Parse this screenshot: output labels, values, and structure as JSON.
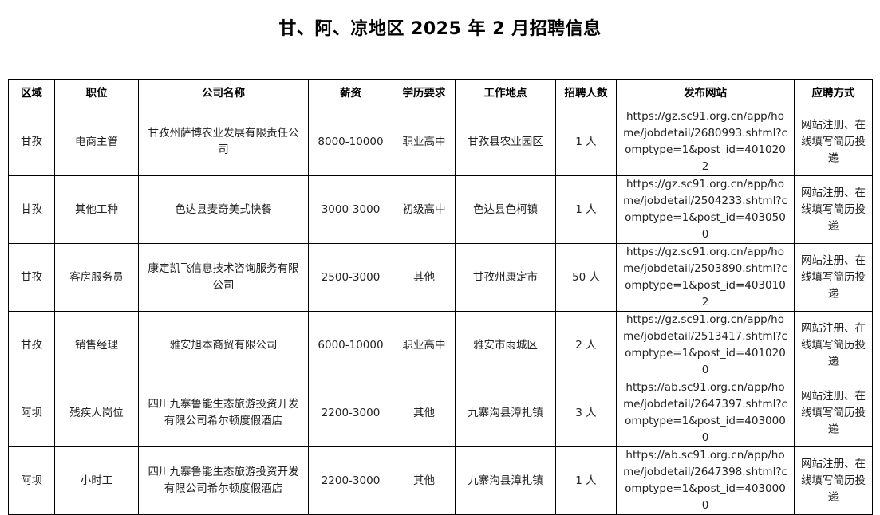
{
  "title": "甘、阿、凉地区 2025 年 2 月招聘信息",
  "columns": [
    "区域",
    "职位",
    "公司名称",
    "薪资",
    "学历要求",
    "工作地点",
    "招聘人数",
    "发布网站",
    "应聘方式"
  ],
  "rows": [
    {
      "region": "甘孜",
      "position": "电商主管",
      "company": "甘孜州萨博农业发展有限责任公司",
      "salary": "8000-10000",
      "education": "职业高中",
      "location": "甘孜县农业园区",
      "count": "1 人",
      "url": "https://gz.sc91.org.cn/app/home/jobdetail/2680993.shtml?comptype=1&post_id=4010202",
      "apply": "网站注册、在线填写简历投递"
    },
    {
      "region": "甘孜",
      "position": "其他工种",
      "company": "色达县麦奇美式快餐",
      "salary": "3000-3000",
      "education": "初级高中",
      "location": "色达县色柯镇",
      "count": "1 人",
      "url": "https://gz.sc91.org.cn/app/home/jobdetail/2504233.shtml?comptype=1&post_id=4030500",
      "apply": "网站注册、在线填写简历投递"
    },
    {
      "region": "甘孜",
      "position": "客房服务员",
      "company": "康定凯飞信息技术咨询服务有限公司",
      "salary": "2500-3000",
      "education": "其他",
      "location": "甘孜州康定市",
      "count": "50 人",
      "url": "https://gz.sc91.org.cn/app/home/jobdetail/2503890.shtml?comptype=1&post_id=4030102",
      "apply": "网站注册、在线填写简历投递"
    },
    {
      "region": "甘孜",
      "position": "销售经理",
      "company": "雅安旭本商贸有限公司",
      "salary": "6000-10000",
      "education": "职业高中",
      "location": "雅安市雨城区",
      "count": "2 人",
      "url": "https://gz.sc91.org.cn/app/home/jobdetail/2513417.shtml?comptype=1&post_id=4010200",
      "apply": "网站注册、在线填写简历投递"
    },
    {
      "region": "阿坝",
      "position": "残疾人岗位",
      "company": "四川九寨鲁能生态旅游投资开发有限公司希尔顿度假酒店",
      "salary": "2200-3000",
      "education": "其他",
      "location": "九寨沟县漳扎镇",
      "count": "3 人",
      "url": "https://ab.sc91.org.cn/app/home/jobdetail/2647397.shtml?comptype=1&post_id=4030000",
      "apply": "网站注册、在线填写简历投递"
    },
    {
      "region": "阿坝",
      "position": "小时工",
      "company": "四川九寨鲁能生态旅游投资开发有限公司希尔顿度假酒店",
      "salary": "2200-3000",
      "education": "其他",
      "location": "九寨沟县漳扎镇",
      "count": "1 人",
      "url": "https://ab.sc91.org.cn/app/home/jobdetail/2647398.shtml?comptype=1&post_id=4030000",
      "apply": "网站注册、在线填写简历投递"
    }
  ]
}
